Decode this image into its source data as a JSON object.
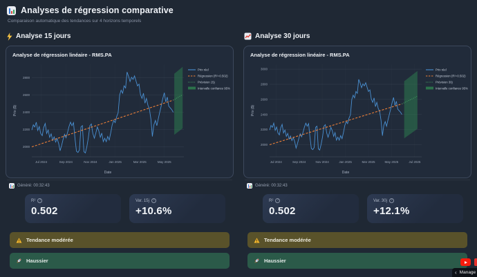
{
  "header": {
    "title": "Analyses de régression comparative",
    "subtitle": "Comparaison automatique des tendances sur 4 horizons temporels"
  },
  "panels": [
    {
      "section_title": "Analyse 15 jours",
      "generated": "Généré: 00:32:43",
      "metrics": [
        {
          "label": "R²",
          "value": "0.502"
        },
        {
          "label": "Var. 15j",
          "value": "+10.6%"
        }
      ],
      "badges": [
        {
          "text": "Tendance modérée"
        },
        {
          "text": "Haussier"
        }
      ]
    },
    {
      "section_title": "Analyse 30 jours",
      "generated": "Généré: 00:32:43",
      "metrics": [
        {
          "label": "R²",
          "value": "0.502"
        },
        {
          "label": "Var. 30j",
          "value": "+12.1%"
        }
      ],
      "badges": [
        {
          "text": "Tendance modérée"
        },
        {
          "text": "Haussier"
        }
      ]
    }
  ],
  "overlay": {
    "manage_label": "Manage"
  },
  "colors": {
    "price": "#4a90d2",
    "regression": "#ef8038",
    "forecast": "#46a865",
    "band": "#2e7a4e",
    "warning_bg": "#59522a",
    "bullish_bg": "#2b5a49",
    "accent_yellow": "#f3b72d",
    "youtube_red": "#f61c0d"
  },
  "chart_data": [
    {
      "type": "line",
      "title": "Analyse de régression linéaire - RMS.PA",
      "xlabel": "Date",
      "ylabel": "Prix ($)",
      "ylim": [
        1885,
        2955
      ],
      "yticks": [
        2000,
        2200,
        2400,
        2600,
        2800
      ],
      "xticks": [
        {
          "label": "Jul 2024",
          "pos": 0.062
        },
        {
          "label": "Sep 2024",
          "pos": 0.224
        },
        {
          "label": "Nov 2024",
          "pos": 0.386
        },
        {
          "label": "Jan 2025",
          "pos": 0.548
        },
        {
          "label": "Mar 2025",
          "pos": 0.71
        },
        {
          "label": "May 2025",
          "pos": 0.872
        }
      ],
      "legend": [
        {
          "label": "Prix réel",
          "style": "solid"
        },
        {
          "label": "Régression (R²=0.502)",
          "style": "dashed"
        },
        {
          "label": "Prévision 15j",
          "style": "dotted"
        },
        {
          "label": "Intervalle confiance 95%",
          "style": "band"
        }
      ],
      "x_scale": 0.93,
      "price_values": [
        2195,
        2255,
        2230,
        2285,
        2190,
        2235,
        2155,
        2130,
        2225,
        2270,
        2155,
        2195,
        2110,
        2150,
        2075,
        2115,
        2055,
        2095,
        2040,
        1955,
        2015,
        2085,
        2145,
        2105,
        2165,
        2235,
        2285,
        2245,
        2280,
        2095,
        1950,
        1935,
        1965,
        2230,
        2245,
        1945,
        1930,
        2005,
        2105,
        2245,
        2265,
        2155,
        2100,
        2160,
        2230,
        2185,
        2110,
        2160,
        2060,
        2100,
        2060,
        2120,
        2080,
        2160,
        2255,
        2305,
        2280,
        2350,
        2395,
        2600,
        2655,
        2620,
        2705,
        2680,
        2865,
        2815,
        2755,
        2805,
        2780,
        2820,
        2760,
        2705,
        2725,
        2605,
        2560,
        2620,
        2505,
        2560,
        2480,
        2440,
        2320,
        2120,
        2255,
        2305,
        2245,
        2330,
        2405,
        2480,
        2560,
        2625,
        2520,
        2575,
        2470,
        2450,
        2430,
        2400
      ],
      "regression": [
        [
          0,
          2000
        ],
        [
          1,
          2540
        ]
      ],
      "forecast": [
        [
          1,
          2540
        ],
        [
          1.065,
          2602
        ]
      ],
      "band": [
        [
          0.937,
          2140
        ],
        [
          0.937,
          2845
        ],
        [
          0.992,
          2925
        ],
        [
          0.992,
          2215
        ]
      ]
    },
    {
      "type": "line",
      "title": "Analyse de régression linéaire - RMS.PA",
      "xlabel": "Date",
      "ylabel": "Prix ($)",
      "ylim": [
        1840,
        3065
      ],
      "yticks": [
        2000,
        2200,
        2400,
        2600,
        2800,
        3000
      ],
      "xticks": [
        {
          "label": "Jul 2024",
          "pos": 0.042
        },
        {
          "label": "Sep 2024",
          "pos": 0.194
        },
        {
          "label": "Nov 2024",
          "pos": 0.346
        },
        {
          "label": "Jan 2025",
          "pos": 0.498
        },
        {
          "label": "Mar 2025",
          "pos": 0.65
        },
        {
          "label": "May 2025",
          "pos": 0.802
        },
        {
          "label": "Jul 2025",
          "pos": 0.954
        }
      ],
      "legend": [
        {
          "label": "Prix réel",
          "style": "solid"
        },
        {
          "label": "Régression (R²=0.502)",
          "style": "dashed"
        },
        {
          "label": "Prévision 30j",
          "style": "dotted"
        },
        {
          "label": "Intervalle confiance 95%",
          "style": "band"
        }
      ],
      "x_scale": 0.87,
      "price_values": [
        2195,
        2255,
        2230,
        2285,
        2190,
        2235,
        2155,
        2130,
        2225,
        2270,
        2155,
        2195,
        2110,
        2150,
        2075,
        2115,
        2055,
        2095,
        2040,
        1955,
        2015,
        2085,
        2145,
        2105,
        2165,
        2235,
        2285,
        2245,
        2280,
        2095,
        1950,
        1935,
        1965,
        2230,
        2245,
        1945,
        1930,
        2005,
        2105,
        2245,
        2265,
        2155,
        2100,
        2160,
        2230,
        2185,
        2110,
        2160,
        2060,
        2100,
        2060,
        2120,
        2080,
        2160,
        2255,
        2305,
        2280,
        2350,
        2395,
        2600,
        2655,
        2620,
        2705,
        2680,
        2865,
        2815,
        2755,
        2805,
        2780,
        2820,
        2760,
        2705,
        2725,
        2605,
        2560,
        2620,
        2505,
        2560,
        2480,
        2440,
        2320,
        2120,
        2255,
        2305,
        2245,
        2330,
        2405,
        2480,
        2560,
        2625,
        2520,
        2575,
        2470,
        2450,
        2430,
        2400
      ],
      "regression": [
        [
          0,
          2000
        ],
        [
          1,
          2540
        ]
      ],
      "forecast": [
        [
          1,
          2540
        ],
        [
          1.115,
          2640
        ]
      ],
      "band": [
        [
          0.885,
          2085
        ],
        [
          0.885,
          2840
        ],
        [
          0.972,
          2975
        ],
        [
          0.972,
          2210
        ]
      ]
    }
  ]
}
